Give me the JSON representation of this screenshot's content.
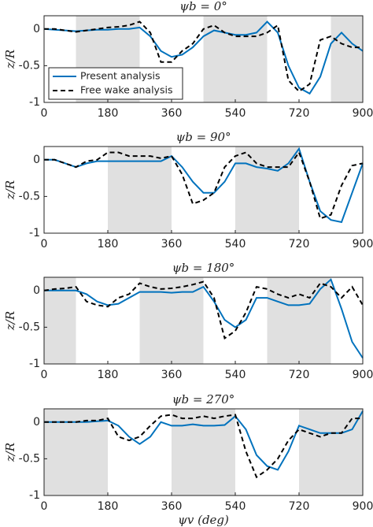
{
  "chart_data": [
    {
      "type": "line",
      "title": "ψb = 0°",
      "ylabel": "z/R",
      "legend": "lower left",
      "shaded": [
        [
          90,
          270
        ],
        [
          450,
          630
        ],
        [
          810,
          900
        ]
      ],
      "shade_color": "#e0e0e0",
      "x": [
        0,
        30,
        60,
        90,
        120,
        150,
        180,
        210,
        240,
        270,
        300,
        330,
        360,
        390,
        420,
        450,
        480,
        510,
        540,
        570,
        600,
        630,
        660,
        690,
        720,
        750,
        780,
        810,
        840,
        870,
        900
      ],
      "series": [
        {
          "name": "Present analysis",
          "color": "#0072bd",
          "linestyle": "solid",
          "values": [
            0,
            -0.01,
            -0.02,
            -0.03,
            -0.02,
            -0.01,
            -0.01,
            0,
            0,
            0.02,
            -0.1,
            -0.3,
            -0.38,
            -0.35,
            -0.25,
            -0.1,
            -0.02,
            -0.05,
            -0.08,
            -0.08,
            -0.05,
            0.1,
            -0.05,
            -0.5,
            -0.8,
            -0.88,
            -0.65,
            -0.2,
            -0.05,
            -0.2,
            -0.3
          ]
        },
        {
          "name": "Free wake analysis",
          "color": "#000000",
          "linestyle": "dashed",
          "values": [
            0,
            0,
            -0.02,
            -0.04,
            -0.02,
            0,
            0.02,
            0.03,
            0.05,
            0.1,
            -0.05,
            -0.45,
            -0.45,
            -0.3,
            -0.2,
            0,
            0.05,
            -0.05,
            -0.1,
            -0.1,
            -0.1,
            -0.05,
            0.05,
            -0.7,
            -0.85,
            -0.75,
            -0.15,
            -0.1,
            -0.2,
            -0.25,
            -0.25
          ]
        }
      ],
      "xlim": [
        0,
        900
      ],
      "xticks": [
        0,
        180,
        360,
        540,
        720,
        900
      ],
      "ylim": [
        -1,
        0.18
      ],
      "yticks": [
        -1,
        -0.5,
        0
      ]
    },
    {
      "type": "line",
      "title": "ψb = 90°",
      "ylabel": "z/R",
      "shaded": [
        [
          180,
          360
        ],
        [
          540,
          720
        ]
      ],
      "shade_color": "#e0e0e0",
      "x": [
        0,
        30,
        60,
        90,
        120,
        150,
        180,
        210,
        240,
        270,
        300,
        330,
        360,
        390,
        420,
        450,
        480,
        510,
        540,
        570,
        600,
        630,
        660,
        690,
        720,
        750,
        780,
        810,
        840,
        870,
        900
      ],
      "series": [
        {
          "name": "Present analysis",
          "color": "#0072bd",
          "linestyle": "solid",
          "values": [
            0,
            0,
            -0.05,
            -0.1,
            -0.05,
            -0.02,
            -0.02,
            -0.02,
            -0.02,
            -0.02,
            -0.02,
            -0.02,
            0.05,
            -0.1,
            -0.3,
            -0.45,
            -0.45,
            -0.3,
            -0.05,
            -0.05,
            -0.1,
            -0.12,
            -0.15,
            -0.05,
            0.15,
            -0.3,
            -0.7,
            -0.82,
            -0.85,
            -0.45,
            -0.05
          ]
        },
        {
          "name": "Free wake analysis",
          "color": "#000000",
          "linestyle": "dashed",
          "values": [
            0,
            0,
            -0.05,
            -0.1,
            -0.02,
            0,
            0.1,
            0.1,
            0.05,
            0.05,
            0.05,
            0.02,
            0.05,
            -0.2,
            -0.6,
            -0.55,
            -0.45,
            -0.1,
            0.05,
            0.1,
            -0.05,
            -0.1,
            -0.1,
            -0.1,
            0.1,
            -0.3,
            -0.8,
            -0.75,
            -0.35,
            -0.08,
            -0.05
          ]
        }
      ],
      "xlim": [
        0,
        900
      ],
      "xticks": [
        0,
        180,
        360,
        540,
        720,
        900
      ],
      "ylim": [
        -1,
        0.18
      ],
      "yticks": [
        -1,
        -0.5,
        0
      ]
    },
    {
      "type": "line",
      "title": "ψb = 180°",
      "ylabel": "z/R",
      "shaded": [
        [
          0,
          90
        ],
        [
          270,
          450
        ],
        [
          630,
          810
        ]
      ],
      "shade_color": "#e0e0e0",
      "x": [
        0,
        30,
        60,
        90,
        120,
        150,
        180,
        210,
        240,
        270,
        300,
        330,
        360,
        390,
        420,
        450,
        480,
        510,
        540,
        570,
        600,
        630,
        660,
        690,
        720,
        750,
        780,
        810,
        840,
        870,
        900
      ],
      "series": [
        {
          "name": "Present analysis",
          "color": "#0072bd",
          "linestyle": "solid",
          "values": [
            0,
            0,
            0,
            0,
            -0.05,
            -0.15,
            -0.2,
            -0.18,
            -0.1,
            -0.02,
            -0.02,
            -0.02,
            -0.03,
            -0.02,
            -0.02,
            0.05,
            -0.15,
            -0.4,
            -0.5,
            -0.4,
            -0.1,
            -0.1,
            -0.15,
            -0.2,
            -0.2,
            -0.18,
            0.02,
            0.15,
            -0.25,
            -0.7,
            -0.92
          ]
        },
        {
          "name": "Free wake analysis",
          "color": "#000000",
          "linestyle": "dashed",
          "values": [
            0,
            0.02,
            0.03,
            0.05,
            -0.15,
            -0.2,
            -0.22,
            -0.1,
            -0.05,
            0.1,
            0.05,
            0.02,
            0.03,
            0.05,
            0.08,
            0.12,
            -0.1,
            -0.65,
            -0.55,
            -0.3,
            0.05,
            0.02,
            -0.05,
            -0.1,
            -0.05,
            -0.1,
            0.1,
            0.05,
            -0.1,
            0.05,
            -0.2
          ]
        }
      ],
      "xlim": [
        0,
        900
      ],
      "xticks": [
        0,
        180,
        360,
        540,
        720,
        900
      ],
      "ylim": [
        -1,
        0.18
      ],
      "yticks": [
        -1,
        -0.5,
        0
      ]
    },
    {
      "type": "line",
      "title": "ψb = 270°",
      "ylabel": "z/R",
      "xlabel": "ψv (deg)",
      "shaded": [
        [
          0,
          180
        ],
        [
          360,
          540
        ],
        [
          720,
          900
        ]
      ],
      "shade_color": "#e0e0e0",
      "x": [
        0,
        30,
        60,
        90,
        120,
        150,
        180,
        210,
        240,
        270,
        300,
        330,
        360,
        390,
        420,
        450,
        480,
        510,
        540,
        570,
        600,
        630,
        660,
        690,
        720,
        750,
        780,
        810,
        840,
        870,
        900
      ],
      "series": [
        {
          "name": "Present analysis",
          "color": "#0072bd",
          "linestyle": "solid",
          "values": [
            0,
            0,
            0,
            0,
            0,
            0.01,
            0.02,
            -0.05,
            -0.2,
            -0.3,
            -0.2,
            0,
            -0.05,
            -0.05,
            -0.03,
            -0.05,
            -0.05,
            -0.04,
            0.08,
            -0.1,
            -0.45,
            -0.6,
            -0.65,
            -0.4,
            -0.05,
            -0.1,
            -0.15,
            -0.15,
            -0.15,
            -0.1,
            0.15
          ]
        },
        {
          "name": "Free wake analysis",
          "color": "#000000",
          "linestyle": "dashed",
          "values": [
            0,
            0,
            0,
            0,
            0.02,
            0.02,
            0.05,
            -0.2,
            -0.25,
            -0.2,
            -0.05,
            0.08,
            0.1,
            0.05,
            0.05,
            0.08,
            0.05,
            0.08,
            0.1,
            -0.4,
            -0.75,
            -0.65,
            -0.5,
            -0.25,
            -0.1,
            -0.15,
            -0.2,
            -0.15,
            -0.15,
            0.05,
            0.05
          ]
        }
      ],
      "xlim": [
        0,
        900
      ],
      "xticks": [
        0,
        180,
        360,
        540,
        720,
        900
      ],
      "ylim": [
        -1,
        0.18
      ],
      "yticks": [
        -1,
        -0.5,
        0
      ]
    }
  ]
}
